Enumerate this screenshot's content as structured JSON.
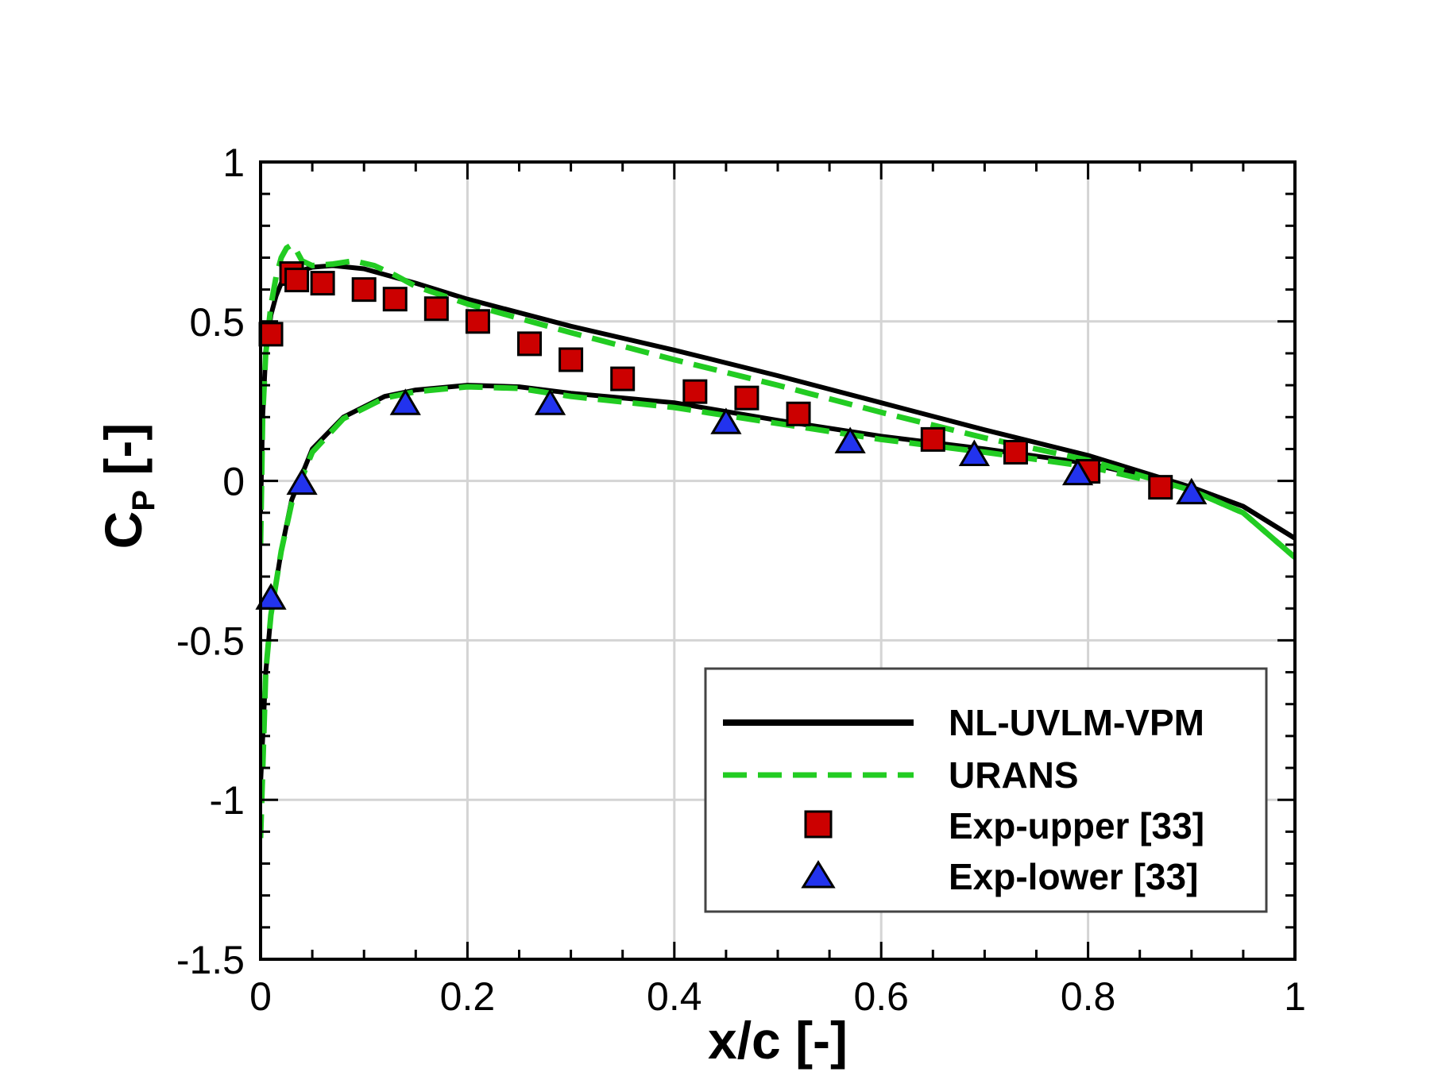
{
  "chart_data": {
    "type": "line",
    "xlabel": "x/c [-]",
    "ylabel_main": "C",
    "ylabel_sub": "P",
    "ylabel_suffix": " [-]",
    "xlim": [
      0,
      1
    ],
    "ylim": [
      -1.5,
      1
    ],
    "xticks": [
      0,
      0.2,
      0.4,
      0.6,
      0.8,
      1
    ],
    "xtick_labels": [
      "0",
      "0.2",
      "0.4",
      "0.6",
      "0.8",
      "1"
    ],
    "yticks": [
      -1.5,
      -1,
      -0.5,
      0,
      0.5,
      1
    ],
    "ytick_labels": [
      "-1.5",
      "-1",
      "-0.5",
      "0",
      "0.5",
      "1"
    ],
    "grid": true,
    "legend_position": "bottom-right",
    "colors": {
      "nl_uvlm_vpm": "#000000",
      "urans": "#22cc22",
      "exp_upper": "#cc0000",
      "exp_lower": "#2233ee"
    },
    "series": [
      {
        "name": "NL-UVLM-VPM",
        "style": "solid",
        "curves": [
          [
            [
              0,
              -0.1
            ],
            [
              0.002,
              0.2
            ],
            [
              0.005,
              0.4
            ],
            [
              0.01,
              0.52
            ],
            [
              0.015,
              0.58
            ],
            [
              0.02,
              0.62
            ],
            [
              0.03,
              0.65
            ],
            [
              0.05,
              0.67
            ],
            [
              0.07,
              0.675
            ],
            [
              0.1,
              0.665
            ],
            [
              0.15,
              0.62
            ],
            [
              0.2,
              0.57
            ],
            [
              0.3,
              0.485
            ],
            [
              0.4,
              0.41
            ],
            [
              0.5,
              0.33
            ],
            [
              0.6,
              0.245
            ],
            [
              0.7,
              0.16
            ],
            [
              0.8,
              0.08
            ],
            [
              0.9,
              -0.02
            ],
            [
              0.95,
              -0.08
            ],
            [
              1.0,
              -0.18
            ]
          ],
          [
            [
              0,
              -0.95
            ],
            [
              0.005,
              -0.6
            ],
            [
              0.01,
              -0.42
            ],
            [
              0.02,
              -0.22
            ],
            [
              0.03,
              -0.06
            ],
            [
              0.05,
              0.1
            ],
            [
              0.08,
              0.2
            ],
            [
              0.12,
              0.265
            ],
            [
              0.15,
              0.285
            ],
            [
              0.2,
              0.3
            ],
            [
              0.25,
              0.295
            ],
            [
              0.3,
              0.275
            ],
            [
              0.4,
              0.245
            ],
            [
              0.5,
              0.19
            ],
            [
              0.6,
              0.14
            ],
            [
              0.7,
              0.1
            ],
            [
              0.8,
              0.055
            ],
            [
              0.9,
              -0.02
            ],
            [
              0.95,
              -0.08
            ],
            [
              1.0,
              -0.18
            ]
          ]
        ]
      },
      {
        "name": "URANS",
        "style": "dashed",
        "curves": [
          [
            [
              0,
              -0.2
            ],
            [
              0.002,
              0.2
            ],
            [
              0.005,
              0.4
            ],
            [
              0.01,
              0.55
            ],
            [
              0.015,
              0.64
            ],
            [
              0.02,
              0.7
            ],
            [
              0.025,
              0.73
            ],
            [
              0.03,
              0.74
            ],
            [
              0.035,
              0.72
            ],
            [
              0.04,
              0.69
            ],
            [
              0.05,
              0.675
            ],
            [
              0.07,
              0.68
            ],
            [
              0.09,
              0.69
            ],
            [
              0.11,
              0.675
            ],
            [
              0.13,
              0.645
            ],
            [
              0.15,
              0.61
            ],
            [
              0.2,
              0.555
            ],
            [
              0.3,
              0.465
            ],
            [
              0.4,
              0.38
            ],
            [
              0.5,
              0.3
            ],
            [
              0.6,
              0.215
            ],
            [
              0.7,
              0.135
            ],
            [
              0.8,
              0.065
            ],
            [
              0.9,
              -0.03
            ],
            [
              0.95,
              -0.1
            ],
            [
              1.0,
              -0.24
            ]
          ],
          [
            [
              0,
              -1.12
            ],
            [
              0.005,
              -0.6
            ],
            [
              0.01,
              -0.42
            ],
            [
              0.02,
              -0.22
            ],
            [
              0.03,
              -0.07
            ],
            [
              0.05,
              0.09
            ],
            [
              0.08,
              0.195
            ],
            [
              0.12,
              0.26
            ],
            [
              0.15,
              0.28
            ],
            [
              0.2,
              0.295
            ],
            [
              0.25,
              0.29
            ],
            [
              0.3,
              0.265
            ],
            [
              0.4,
              0.23
            ],
            [
              0.5,
              0.18
            ],
            [
              0.6,
              0.13
            ],
            [
              0.7,
              0.09
            ],
            [
              0.8,
              0.045
            ],
            [
              0.9,
              -0.03
            ],
            [
              0.95,
              -0.1
            ],
            [
              1.0,
              -0.24
            ]
          ]
        ]
      },
      {
        "name": "Exp-upper [33]",
        "marker": "square",
        "x": [
          0.01,
          0.03,
          0.035,
          0.06,
          0.1,
          0.13,
          0.17,
          0.21,
          0.26,
          0.3,
          0.35,
          0.42,
          0.47,
          0.52,
          0.65,
          0.73,
          0.8,
          0.87
        ],
        "y": [
          0.46,
          0.65,
          0.63,
          0.62,
          0.6,
          0.57,
          0.54,
          0.5,
          0.43,
          0.38,
          0.32,
          0.28,
          0.26,
          0.21,
          0.13,
          0.09,
          0.03,
          -0.02
        ]
      },
      {
        "name": "Exp-lower [33]",
        "marker": "triangle",
        "x": [
          0.01,
          0.04,
          0.14,
          0.28,
          0.45,
          0.57,
          0.69,
          0.79,
          0.9
        ],
        "y": [
          -0.37,
          -0.01,
          0.24,
          0.24,
          0.18,
          0.12,
          0.08,
          0.02,
          -0.04
        ]
      }
    ]
  }
}
